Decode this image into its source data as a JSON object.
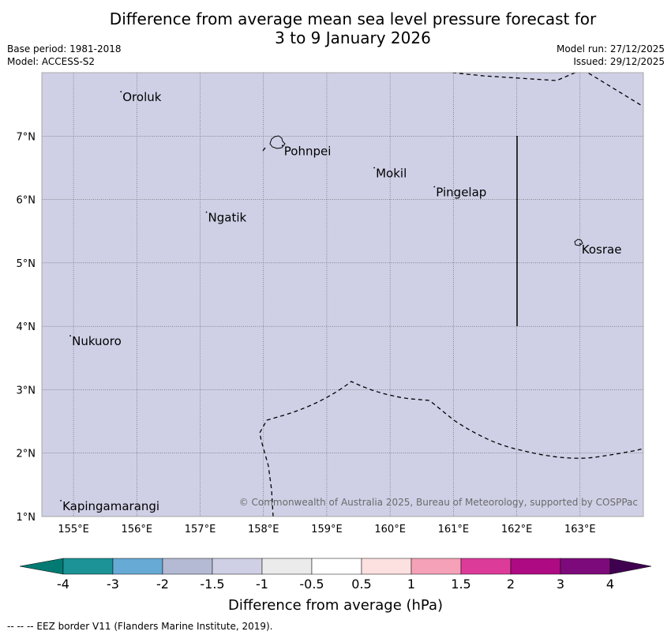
{
  "title_line1": "Difference from average mean sea level pressure forecast for",
  "title_line2": "3 to 9 January 2026",
  "base_period": "Base period: 1981-2018",
  "model": "Model: ACCESS-S2",
  "model_run": "Model run: 27/12/2025",
  "issued": "Issued: 29/12/2025",
  "copyright": "© Commonwealth of Australia 2025, Bureau of Meteorology, supported by COSPPac",
  "map": {
    "lon_labels": [
      "155°E",
      "156°E",
      "157°E",
      "158°E",
      "159°E",
      "160°E",
      "161°E",
      "162°E",
      "163°E"
    ],
    "lat_labels": [
      "7°N",
      "6°N",
      "5°N",
      "4°N",
      "3°N",
      "2°N",
      "1°N"
    ],
    "places": [
      {
        "name": "Oroluk",
        "lon": 155.75,
        "lat": 7.7
      },
      {
        "name": "Pohnpei",
        "lon": 158.3,
        "lat": 6.85
      },
      {
        "name": "Mokil",
        "lon": 159.75,
        "lat": 6.5
      },
      {
        "name": "Pingelap",
        "lon": 160.7,
        "lat": 6.2
      },
      {
        "name": "Ngatik",
        "lon": 157.1,
        "lat": 5.8
      },
      {
        "name": "Kosrae",
        "lon": 163.0,
        "lat": 5.3
      },
      {
        "name": "Nukuoro",
        "lon": 154.95,
        "lat": 3.85
      },
      {
        "name": "Kapingamarangi",
        "lon": 154.8,
        "lat": 1.25
      }
    ],
    "field_value_band": "-1.5 to -1",
    "field_color": "#cfd0e6"
  },
  "colorbar": {
    "title": "Difference from average (hPa)",
    "tick_labels": [
      "-4",
      "-3",
      "-2",
      "-1.5",
      "-1",
      "-0.5",
      "0.5",
      "1",
      "1.5",
      "2",
      "3",
      "4"
    ],
    "colors": [
      "#007a72",
      "#1c9396",
      "#67aad5",
      "#b4bad4",
      "#cfd0e6",
      "#ebebeb",
      "#ffffff",
      "#fde0e0",
      "#f5a1b8",
      "#dd3b9a",
      "#ae0a83",
      "#7d0a7a",
      "#400050"
    ]
  },
  "footnote": "--  --  -- EEZ border V11 (Flanders Marine Institute, 2019)."
}
